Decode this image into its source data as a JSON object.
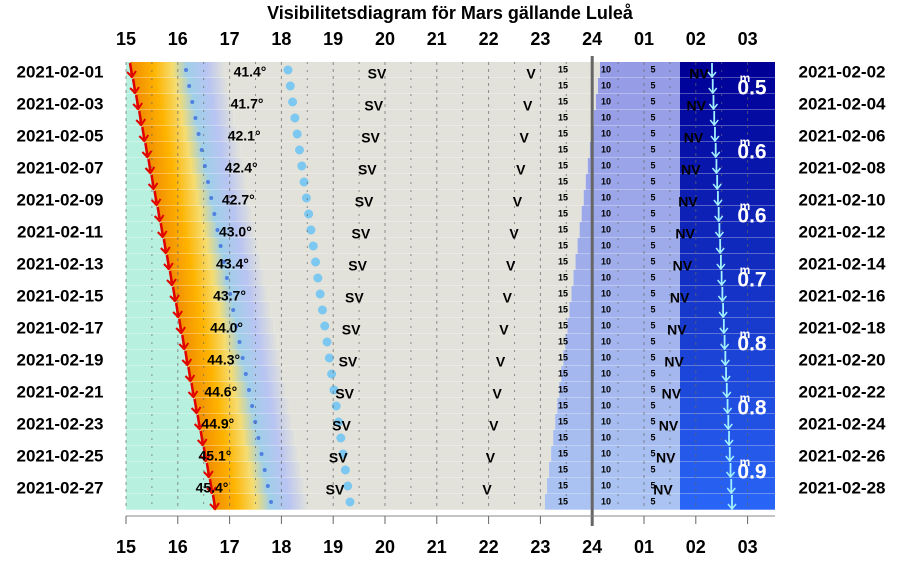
{
  "title": "Visibilitetsdiagram för Mars gällande Luleå",
  "hours": [
    "15",
    "16",
    "17",
    "18",
    "19",
    "20",
    "21",
    "22",
    "23",
    "24",
    "01",
    "02",
    "03"
  ],
  "twilight_labels": [
    "15",
    "10",
    "5"
  ],
  "directions": [
    "SV",
    "V",
    "NV"
  ],
  "rows": [
    {
      "left_date": "2021-02-01",
      "right_date": "2021-02-02",
      "altitude": "41.4°"
    },
    {
      "left_date": "2021-02-03",
      "right_date": "2021-02-04",
      "altitude": "41.7°"
    },
    {
      "left_date": "2021-02-05",
      "right_date": "2021-02-06",
      "altitude": "42.1°"
    },
    {
      "left_date": "2021-02-07",
      "right_date": "2021-02-08",
      "altitude": "42.4°"
    },
    {
      "left_date": "2021-02-09",
      "right_date": "2021-02-10",
      "altitude": "42.7°"
    },
    {
      "left_date": "2021-02-11",
      "right_date": "2021-02-12",
      "altitude": "43.0°"
    },
    {
      "left_date": "2021-02-13",
      "right_date": "2021-02-14",
      "altitude": "43.4°"
    },
    {
      "left_date": "2021-02-15",
      "right_date": "2021-02-16",
      "altitude": "43.7°"
    },
    {
      "left_date": "2021-02-17",
      "right_date": "2021-02-18",
      "altitude": "44.0°"
    },
    {
      "left_date": "2021-02-19",
      "right_date": "2021-02-20",
      "altitude": "44.3°"
    },
    {
      "left_date": "2021-02-21",
      "right_date": "2021-02-22",
      "altitude": "44.6°"
    },
    {
      "left_date": "2021-02-23",
      "right_date": "2021-02-24",
      "altitude": "44.9°"
    },
    {
      "left_date": "2021-02-25",
      "right_date": "2021-02-26",
      "altitude": "45.1°"
    },
    {
      "left_date": "2021-02-27",
      "right_date": "2021-02-28",
      "altitude": "45.4°"
    }
  ],
  "magnitudes": [
    "0.5",
    "0.6",
    "0.6",
    "0.7",
    "0.8",
    "0.8",
    "0.9"
  ],
  "magnitude_unit": "m"
}
